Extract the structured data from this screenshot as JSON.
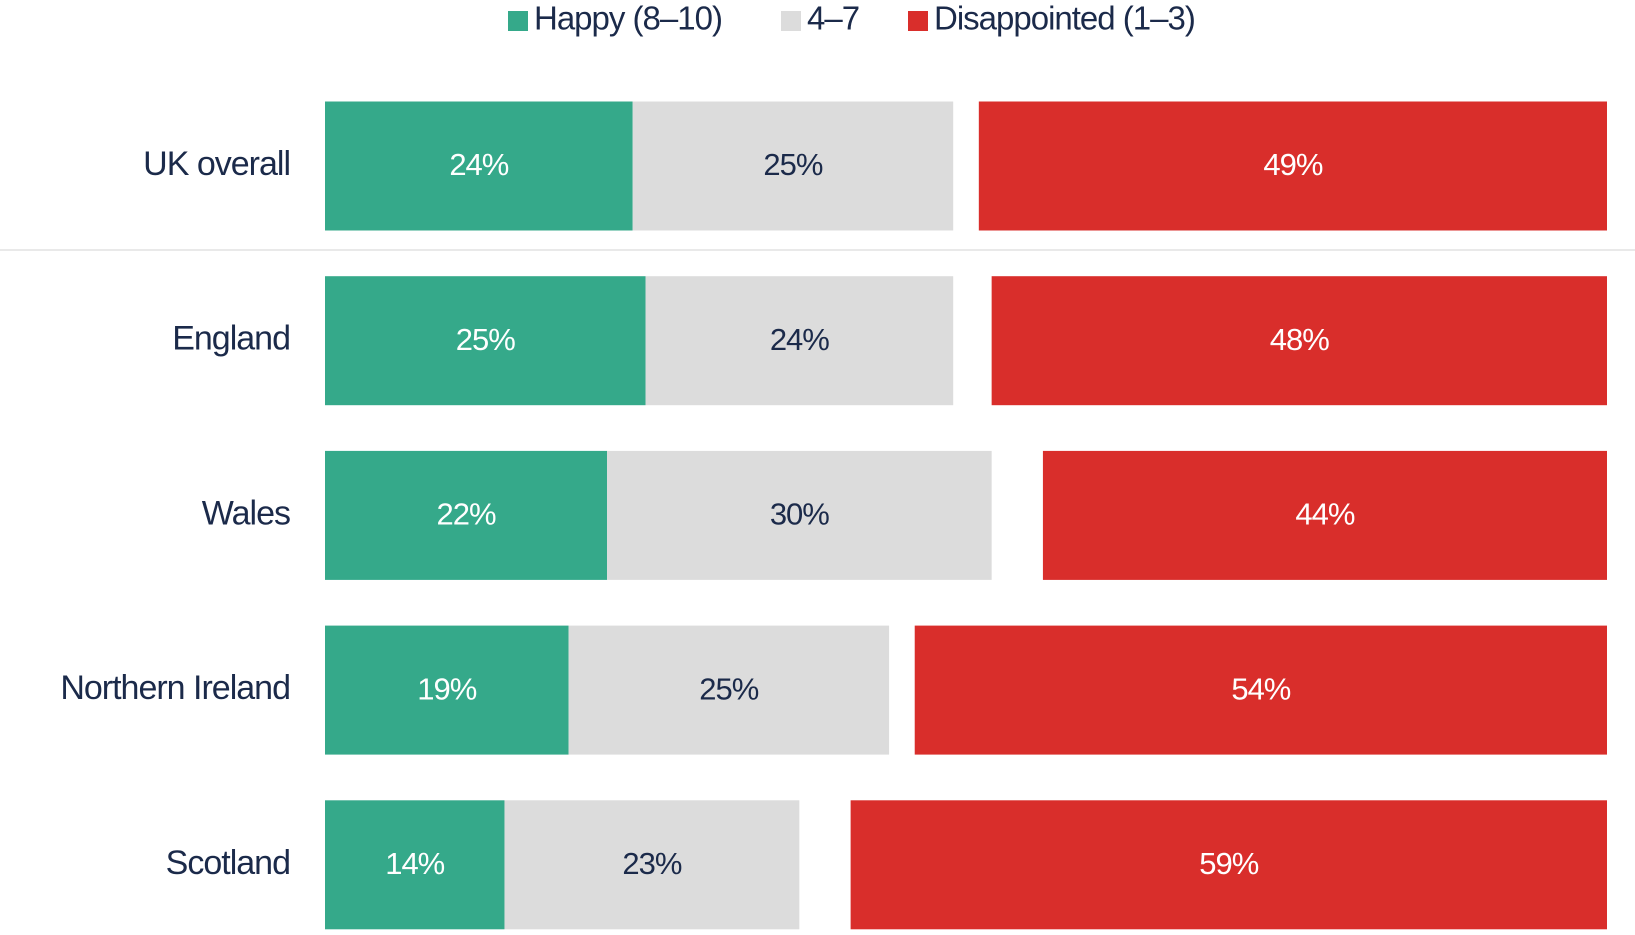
{
  "chart_data": {
    "type": "bar",
    "orientation": "horizontal",
    "stacked": true,
    "categories": [
      "UK overall",
      "England",
      "Wales",
      "Northern Ireland",
      "Scotland"
    ],
    "series": [
      {
        "name": "Happy (8–10)",
        "color": "#35a98a",
        "values": [
          24,
          25,
          22,
          19,
          14
        ],
        "value_labels": [
          "24%",
          "25%",
          "22%",
          "19%",
          "14%"
        ]
      },
      {
        "name": "4–7",
        "color": "#dcdcdc",
        "values": [
          25,
          24,
          30,
          25,
          23
        ],
        "value_labels": [
          "25%",
          "24%",
          "30%",
          "25%",
          "23%"
        ]
      },
      {
        "name": "Disappointed (1–3)",
        "color": "#d92e2b",
        "values": [
          49,
          48,
          44,
          54,
          59
        ],
        "value_labels": [
          "49%",
          "48%",
          "44%",
          "54%",
          "59%"
        ]
      }
    ],
    "xlim": [
      0,
      100
    ],
    "legend": "top"
  }
}
